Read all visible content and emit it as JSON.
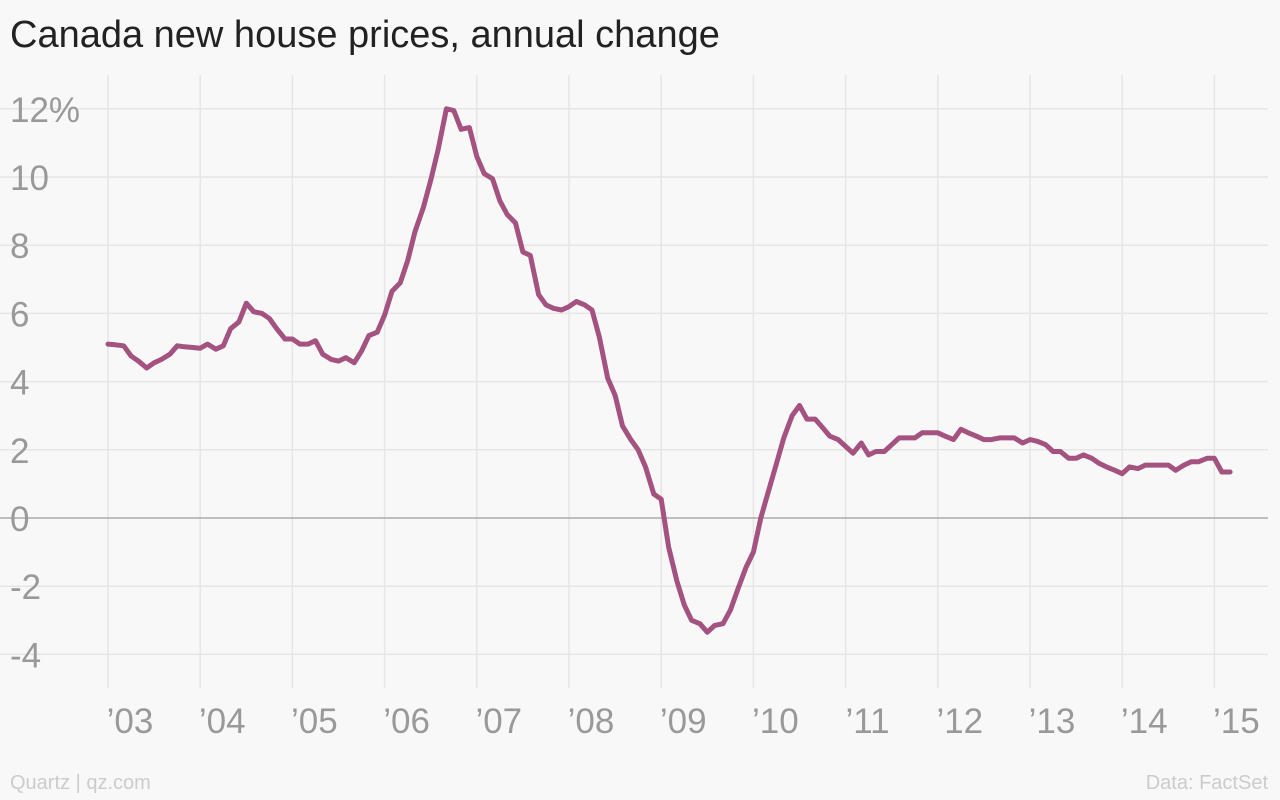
{
  "title": "Canada new house prices, annual change",
  "source_left": "Quartz | qz.com",
  "source_right": "Data: FactSet",
  "colors": {
    "line": "#a4527f",
    "grid": "#e6e6e6",
    "zero": "#aaaaaa",
    "tick_text": "#999999",
    "title": "#222222",
    "footer": "#cccccc"
  },
  "chart_data": {
    "type": "line",
    "title": "Canada new house prices, annual change",
    "xlabel": "",
    "ylabel": "",
    "ylim": [
      -5,
      12.5
    ],
    "xlim": [
      2002.9,
      2015.65
    ],
    "y_ticks": [
      -4,
      -2,
      0,
      2,
      4,
      6,
      8,
      10,
      12
    ],
    "y_tick_labels": [
      "-4",
      "-2",
      "0",
      "2",
      "4",
      "6",
      "8",
      "10",
      "12%"
    ],
    "x_ticks": [
      2003,
      2004,
      2005,
      2006,
      2007,
      2008,
      2009,
      2010,
      2011,
      2012,
      2013,
      2014,
      2015
    ],
    "x_tick_labels": [
      "’03",
      "’04",
      "’05",
      "’06",
      "’07",
      "’08",
      "’09",
      "’10",
      "’11",
      "’12",
      "’13",
      "’14",
      "’15"
    ],
    "grid": true,
    "legend": "none",
    "series": [
      {
        "x": [
          2003.0,
          2003.08,
          2003.17,
          2003.25,
          2003.33,
          2003.42,
          2003.5,
          2003.58,
          2003.67,
          2003.75,
          2003.83,
          2003.92,
          2004.0,
          2004.08,
          2004.17,
          2004.25,
          2004.33,
          2004.42,
          2004.5,
          2004.58,
          2004.67,
          2004.75,
          2004.83,
          2004.92,
          2005.0,
          2005.08,
          2005.17,
          2005.25,
          2005.33,
          2005.42,
          2005.5,
          2005.58,
          2005.67,
          2005.75,
          2005.83,
          2005.92,
          2006.0,
          2006.08,
          2006.17,
          2006.25,
          2006.33,
          2006.42,
          2006.5,
          2006.58,
          2006.67,
          2006.75,
          2006.83,
          2006.92,
          2007.0,
          2007.08,
          2007.17,
          2007.25,
          2007.33,
          2007.42,
          2007.5,
          2007.58,
          2007.67,
          2007.75,
          2007.83,
          2007.92,
          2008.0,
          2008.08,
          2008.17,
          2008.25,
          2008.33,
          2008.42,
          2008.5,
          2008.58,
          2008.67,
          2008.75,
          2008.83,
          2008.92,
          2009.0,
          2009.08,
          2009.17,
          2009.25,
          2009.33,
          2009.42,
          2009.5,
          2009.58,
          2009.67,
          2009.75,
          2009.83,
          2009.92,
          2010.0,
          2010.08,
          2010.17,
          2010.25,
          2010.33,
          2010.42,
          2010.5,
          2010.58,
          2010.67,
          2010.75,
          2010.83,
          2010.92,
          2011.0,
          2011.08,
          2011.17,
          2011.25,
          2011.33,
          2011.42,
          2011.5,
          2011.58,
          2011.67,
          2011.75,
          2011.83,
          2011.92,
          2012.0,
          2012.08,
          2012.17,
          2012.25,
          2012.33,
          2012.42,
          2012.5,
          2012.58,
          2012.67,
          2012.75,
          2012.83,
          2012.92,
          2013.0,
          2013.08,
          2013.17,
          2013.25,
          2013.33,
          2013.42,
          2013.5,
          2013.58,
          2013.67,
          2013.75,
          2013.83,
          2013.92,
          2014.0,
          2014.08,
          2014.17,
          2014.25,
          2014.33,
          2014.42,
          2014.5,
          2014.58,
          2014.67,
          2014.75,
          2014.83,
          2014.92,
          2015.0,
          2015.08,
          2015.17
        ],
        "values": [
          5.1,
          5.08,
          5.05,
          4.75,
          4.6,
          4.4,
          4.55,
          4.65,
          4.8,
          5.05,
          5.02,
          5.0,
          4.98,
          5.1,
          4.95,
          5.05,
          5.55,
          5.75,
          6.3,
          6.05,
          6.0,
          5.85,
          5.55,
          5.25,
          5.25,
          5.1,
          5.1,
          5.2,
          4.8,
          4.65,
          4.6,
          4.7,
          4.55,
          4.9,
          5.35,
          5.45,
          5.95,
          6.65,
          6.9,
          7.55,
          8.4,
          9.1,
          9.9,
          10.8,
          12.0,
          11.95,
          11.4,
          11.45,
          10.6,
          10.1,
          9.95,
          9.3,
          8.9,
          8.65,
          7.8,
          7.7,
          6.55,
          6.25,
          6.15,
          6.1,
          6.2,
          6.35,
          6.25,
          6.1,
          5.3,
          4.1,
          3.6,
          2.7,
          2.3,
          2.0,
          1.5,
          0.7,
          0.55,
          -0.85,
          -1.85,
          -2.55,
          -3.0,
          -3.1,
          -3.35,
          -3.15,
          -3.1,
          -2.7,
          -2.1,
          -1.45,
          -1.0,
          0.0,
          0.85,
          1.6,
          2.35,
          3.0,
          3.3,
          2.9,
          2.9,
          2.65,
          2.4,
          2.3,
          2.1,
          1.9,
          2.2,
          1.85,
          1.95,
          1.95,
          2.15,
          2.35,
          2.35,
          2.35,
          2.5,
          2.5,
          2.5,
          2.4,
          2.3,
          2.6,
          2.5,
          2.4,
          2.3,
          2.3,
          2.35,
          2.35,
          2.35,
          2.2,
          2.3,
          2.25,
          2.15,
          1.95,
          1.95,
          1.75,
          1.75,
          1.85,
          1.75,
          1.6,
          1.5,
          1.4,
          1.3,
          1.5,
          1.45,
          1.55,
          1.55,
          1.55,
          1.55,
          1.4,
          1.55,
          1.65,
          1.65,
          1.75,
          1.75,
          1.35,
          1.35
        ]
      }
    ]
  }
}
